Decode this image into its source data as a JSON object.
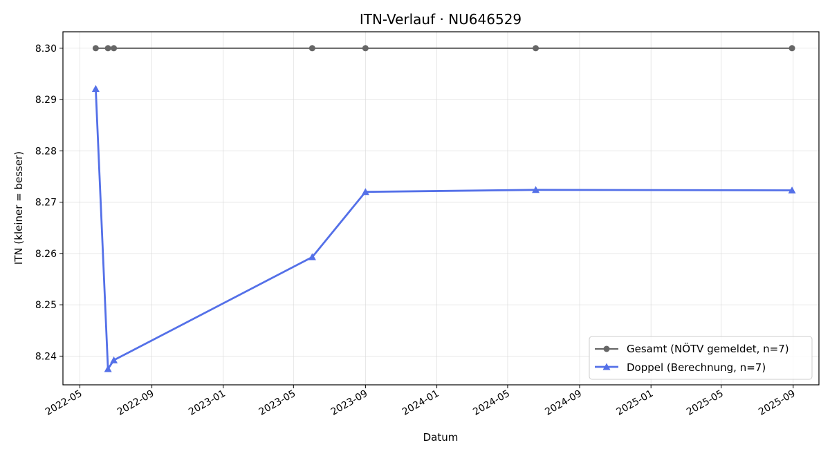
{
  "chart_data": {
    "type": "line",
    "title": "ITN-Verlauf · NU646529",
    "xlabel": "Datum",
    "ylabel": "ITN  (kleiner = besser)",
    "x_axis_type": "date",
    "xlim": [
      "2022-04-02",
      "2025-10-15"
    ],
    "ylim": [
      8.2344,
      8.3032
    ],
    "grid": true,
    "legend_position": "lower-right",
    "x_ticks": [
      "2022-05",
      "2022-09",
      "2023-01",
      "2023-05",
      "2023-09",
      "2024-01",
      "2024-05",
      "2024-09",
      "2025-01",
      "2025-05",
      "2025-09"
    ],
    "y_ticks": [
      8.24,
      8.25,
      8.26,
      8.27,
      8.28,
      8.29,
      8.3
    ],
    "y_tick_labels": [
      "8.24",
      "8.25",
      "8.26",
      "8.27",
      "8.28",
      "8.29",
      "8.30"
    ],
    "series": [
      {
        "name": "Gesamt (NÖTV gemeldet, n=7)",
        "color": "#666666",
        "marker": "circle",
        "x": [
          "2022-05-28",
          "2022-06-18",
          "2022-06-28",
          "2023-06-02",
          "2023-09-01",
          "2024-06-18",
          "2025-08-30"
        ],
        "y": [
          8.3,
          8.3,
          8.3,
          8.3,
          8.3,
          8.3,
          8.3
        ]
      },
      {
        "name": "Doppel (Berechnung, n=7)",
        "color": "#5470e8",
        "marker": "triangle",
        "x": [
          "2022-05-28",
          "2022-06-18",
          "2022-06-28",
          "2023-06-02",
          "2023-09-01",
          "2024-06-18",
          "2025-08-30"
        ],
        "y": [
          8.2921,
          8.2375,
          8.2392,
          8.2593,
          8.272,
          8.2724,
          8.2723
        ]
      }
    ]
  }
}
